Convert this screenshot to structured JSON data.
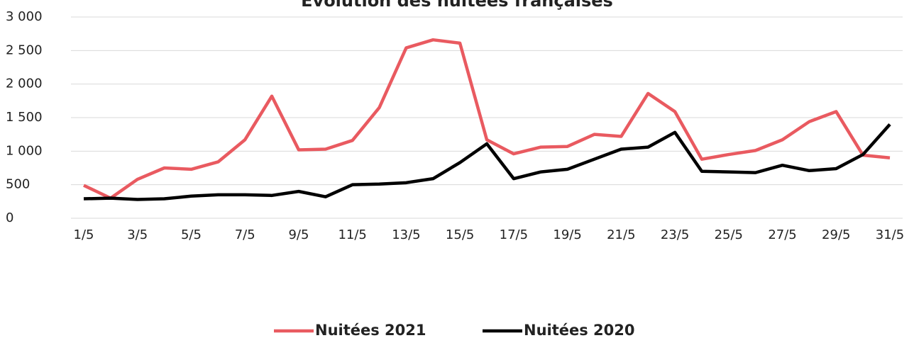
{
  "chart_data": {
    "type": "line",
    "title": "Évolution des nuitées françaises",
    "categories": [
      "1/5",
      null,
      "3/5",
      null,
      "5/5",
      null,
      "7/5",
      null,
      "9/5",
      null,
      "11/5",
      null,
      "13/5",
      null,
      "15/5",
      null,
      "17/5",
      null,
      "19/5",
      null,
      "21/5",
      null,
      "23/5",
      null,
      "25/5",
      null,
      "27/5",
      null,
      "29/5",
      null,
      "31/5"
    ],
    "series": [
      {
        "name": "Nuitées 2021",
        "color": "#e95a60",
        "values": [
          490,
          300,
          580,
          750,
          730,
          840,
          1170,
          1820,
          1020,
          1030,
          1160,
          1650,
          2540,
          2660,
          2610,
          1170,
          960,
          1060,
          1070,
          1250,
          1220,
          1860,
          1590,
          880,
          950,
          1010,
          1170,
          1440,
          1590,
          940,
          900
        ]
      },
      {
        "name": "Nuitées 2020",
        "color": "#000000",
        "values": [
          290,
          300,
          280,
          290,
          330,
          350,
          350,
          340,
          400,
          320,
          500,
          510,
          530,
          590,
          830,
          1110,
          590,
          690,
          730,
          880,
          1030,
          1060,
          1280,
          700,
          690,
          680,
          790,
          710,
          740,
          950,
          1400
        ]
      }
    ],
    "ylim": [
      0,
      3000
    ],
    "yticks": [
      0,
      500,
      {
        "value": 1000,
        "label": "1 000"
      },
      {
        "value": 1500,
        "label": "1 500"
      },
      {
        "value": 2000,
        "label": "2 000"
      },
      {
        "value": 2500,
        "label": "2 500"
      },
      {
        "value": 3000,
        "label": "3 000"
      }
    ],
    "grid": true,
    "legend": "bottom"
  }
}
